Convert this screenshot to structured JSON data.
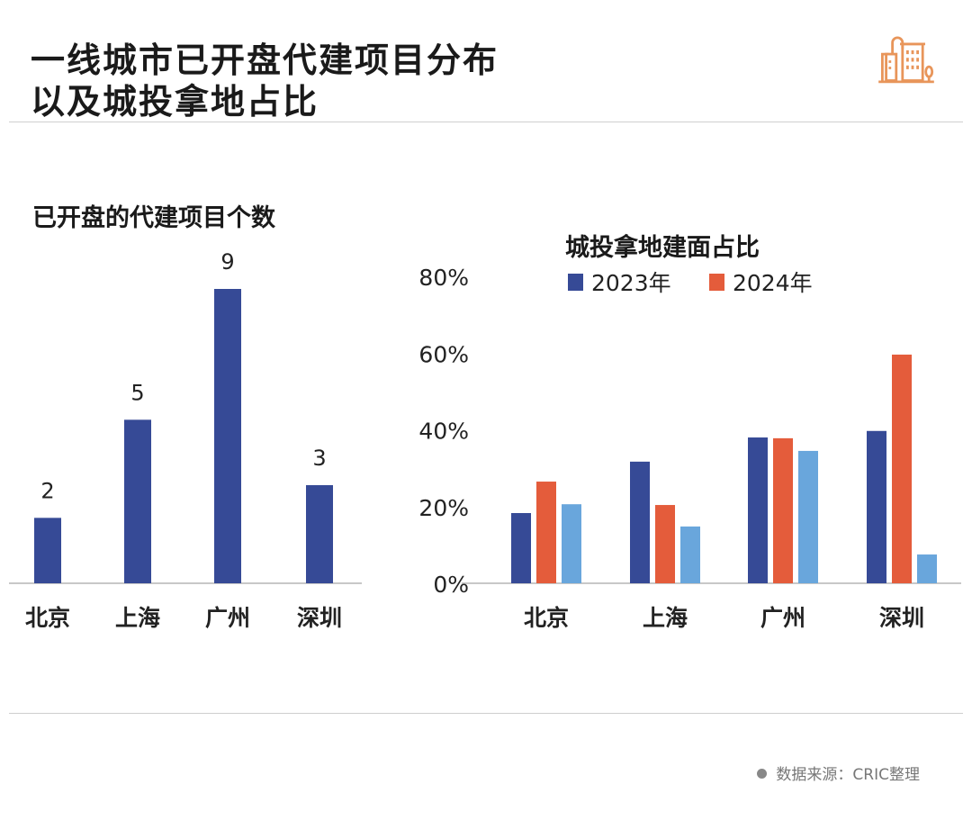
{
  "header": {
    "title_line1": "一线城市已开盘代建项目分布",
    "title_line2": "以及城投拿地占比",
    "icon": "city-buildings-icon"
  },
  "footer": {
    "source": "数据来源：CRIC整理"
  },
  "colors": {
    "dark_blue": "#364a96",
    "orange": "#e45c3b",
    "light_blue": "#69a6dc",
    "icon": "#e8955a"
  },
  "chart_data": [
    {
      "type": "bar",
      "title": "已开盘的代建项目个数",
      "categories": [
        "北京",
        "上海",
        "广州",
        "深圳"
      ],
      "values": [
        2,
        5,
        9,
        3
      ],
      "data_labels": [
        "2",
        "5",
        "9",
        "3"
      ],
      "ylim": [
        0,
        9
      ],
      "grid": false
    },
    {
      "type": "bar",
      "title": "城投拿地建面占比",
      "categories": [
        "北京",
        "上海",
        "广州",
        "深圳"
      ],
      "yticks": [
        "0%",
        "20%",
        "40%",
        "60%",
        "80%"
      ],
      "ylim": [
        0,
        80
      ],
      "grid": false,
      "legend": "top",
      "series": [
        {
          "name": "2023年",
          "values": [
            18.3,
            31.7,
            38,
            39.7
          ]
        },
        {
          "name": "2024年",
          "values": [
            26.5,
            20.4,
            37.8,
            59.6
          ]
        },
        {
          "values": [
            20.6,
            14.8,
            34.5,
            7.5
          ]
        }
      ]
    }
  ]
}
